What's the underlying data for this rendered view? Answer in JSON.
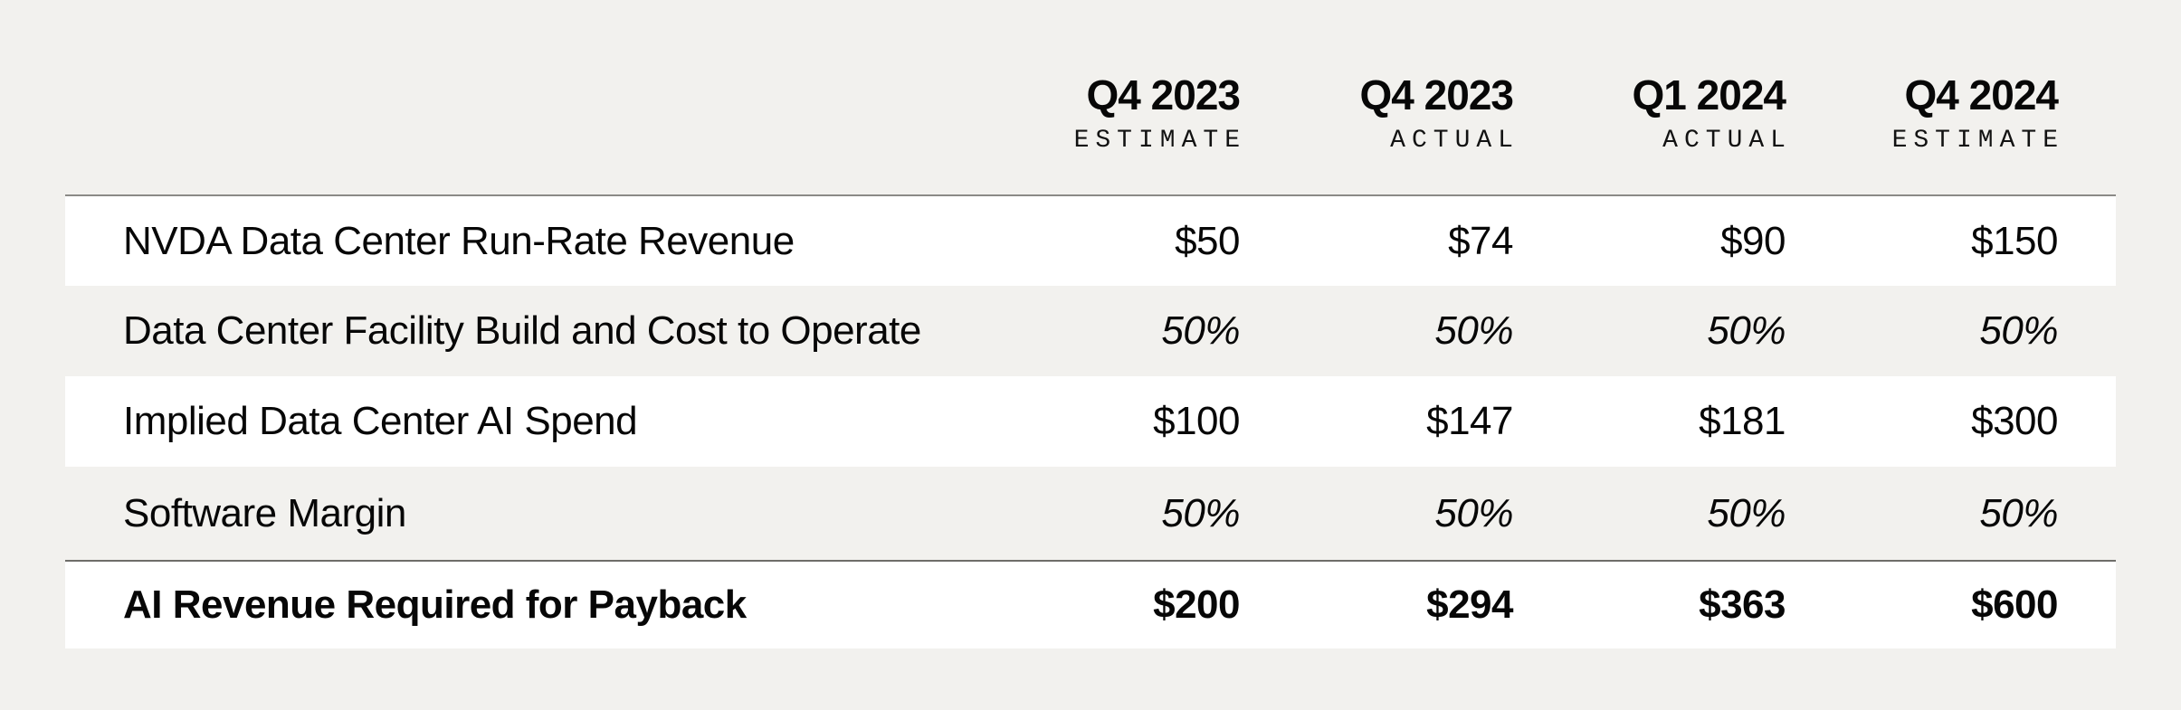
{
  "page": {
    "background_color": "#f2f1ee",
    "row_highlight_color": "#ffffff",
    "rule_color_top": "#8b8a86",
    "rule_color_total": "#6e6d69",
    "text_color": "#070707"
  },
  "table": {
    "columns": [
      {
        "period": "Q4 2023",
        "type": "ESTIMATE"
      },
      {
        "period": "Q4 2023",
        "type": "ACTUAL"
      },
      {
        "period": "Q1 2024",
        "type": "ACTUAL"
      },
      {
        "period": "Q4 2024",
        "type": "ESTIMATE"
      }
    ],
    "rows": [
      {
        "label": "NVDA Data Center Run-Rate Revenue",
        "values": [
          "$50",
          "$74",
          "$90",
          "$150"
        ],
        "style": "regular"
      },
      {
        "label": "Data Center Facility Build and Cost to Operate",
        "values": [
          "50%",
          "50%",
          "50%",
          "50%"
        ],
        "style": "italic"
      },
      {
        "label": "Implied Data Center AI Spend",
        "values": [
          "$100",
          "$147",
          "$181",
          "$300"
        ],
        "style": "regular"
      },
      {
        "label": "Software Margin",
        "values": [
          "50%",
          "50%",
          "50%",
          "50%"
        ],
        "style": "italic"
      },
      {
        "label": "AI Revenue Required for Payback",
        "values": [
          "$200",
          "$294",
          "$363",
          "$600"
        ],
        "style": "bold"
      }
    ]
  },
  "chart_data": {
    "type": "table",
    "title": "",
    "columns": [
      "Q4 2023 ESTIMATE",
      "Q4 2023 ACTUAL",
      "Q1 2024 ACTUAL",
      "Q4 2024 ESTIMATE"
    ],
    "rows": [
      {
        "label": "NVDA Data Center Run-Rate Revenue",
        "values": [
          50,
          74,
          90,
          150
        ],
        "unit": "$B"
      },
      {
        "label": "Data Center Facility Build and Cost to Operate",
        "values": [
          50,
          50,
          50,
          50
        ],
        "unit": "%"
      },
      {
        "label": "Implied Data Center AI Spend",
        "values": [
          100,
          147,
          181,
          300
        ],
        "unit": "$B"
      },
      {
        "label": "Software Margin",
        "values": [
          50,
          50,
          50,
          50
        ],
        "unit": "%"
      },
      {
        "label": "AI Revenue Required for Payback",
        "values": [
          200,
          294,
          363,
          600
        ],
        "unit": "$B"
      }
    ],
    "layout": {
      "value_alignment": "right",
      "striped_rows": true,
      "total_row_bold": true
    }
  }
}
